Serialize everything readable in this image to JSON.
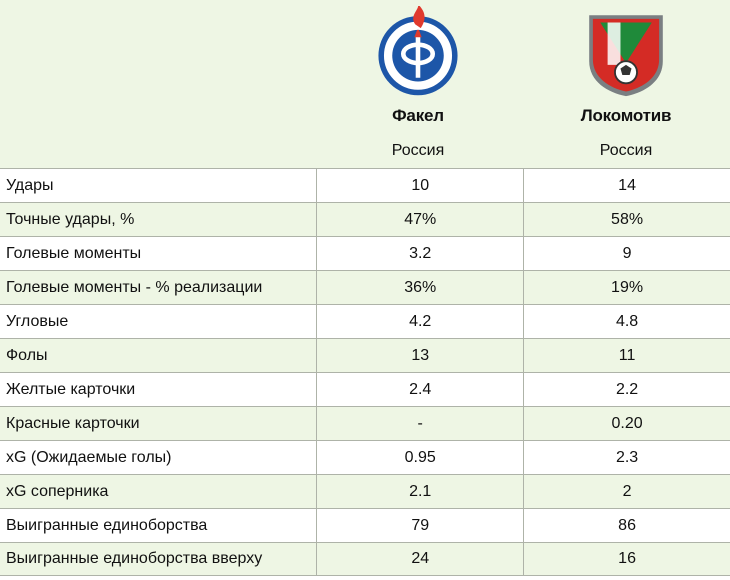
{
  "teams": [
    {
      "name": "Факел",
      "country": "Россия",
      "logo_icon": "fakel-crest-icon",
      "colors": {
        "primary": "#1d56a8",
        "accent": "#e03a2d"
      }
    },
    {
      "name": "Локомотив",
      "country": "Россия",
      "logo_icon": "lokomotiv-crest-icon",
      "colors": {
        "primary": "#d42b25",
        "accent": "#1f8a3a"
      }
    }
  ],
  "theme": {
    "header_bg": "#eef6e4",
    "alt_row_bg": "#eef6e4",
    "border": "#aeb3a8"
  },
  "rows": [
    {
      "label": "Удары",
      "fakel": "10",
      "loko": "14"
    },
    {
      "label": "Точные удары, %",
      "fakel": "47%",
      "loko": "58%"
    },
    {
      "label": "Голевые моменты",
      "fakel": "3.2",
      "loko": "9"
    },
    {
      "label": "Голевые моменты - % реализации",
      "fakel": "36%",
      "loko": "19%"
    },
    {
      "label": "Угловые",
      "fakel": "4.2",
      "loko": "4.8"
    },
    {
      "label": "Фолы",
      "fakel": "13",
      "loko": "11"
    },
    {
      "label": "Желтые карточки",
      "fakel": "2.4",
      "loko": "2.2"
    },
    {
      "label": "Красные карточки",
      "fakel": "-",
      "loko": "0.20"
    },
    {
      "label": "xG (Ожидаемые голы)",
      "fakel": "0.95",
      "loko": "2.3"
    },
    {
      "label": "xG соперника",
      "fakel": "2.1",
      "loko": "2"
    },
    {
      "label": "Выигранные единоборства",
      "fakel": "79",
      "loko": "86"
    },
    {
      "label": "Выигранные единоборства вверху",
      "fakel": "24",
      "loko": "16"
    }
  ]
}
